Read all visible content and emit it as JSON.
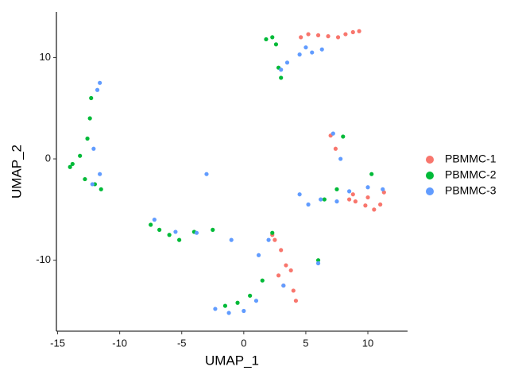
{
  "chart_data": {
    "type": "scatter",
    "x_label": "UMAP_1",
    "y_label": "UMAP_2",
    "xlim": [
      -15.1,
      13.2
    ],
    "ylim": [
      -17.0,
      14.5
    ],
    "xticks": [
      -15,
      -10,
      -5,
      0,
      5,
      10
    ],
    "yticks": [
      -10,
      0,
      10
    ],
    "grid": false,
    "legend": "right",
    "series": [
      {
        "name": "PBMMC-1",
        "color": "#F8766D",
        "x": [
          8.2,
          8.8,
          9.3,
          7.6,
          6.8,
          6.0,
          5.2,
          4.6,
          9.0,
          9.8,
          10.5,
          11.0,
          10.0,
          8.8,
          7.0,
          7.4,
          2.5,
          3.0,
          3.4,
          2.8,
          3.2,
          4.0,
          4.2,
          2.3,
          3.8,
          8.5,
          11.3
        ],
        "y": [
          12.3,
          12.5,
          12.6,
          12.0,
          12.1,
          12.2,
          12.3,
          12.0,
          -4.2,
          -4.6,
          -5.0,
          -4.5,
          -3.8,
          -3.5,
          2.3,
          1.0,
          -8.0,
          -9.0,
          -10.5,
          -11.5,
          -12.5,
          -13.0,
          -14.0,
          -7.5,
          -11.0,
          -4.0,
          -3.3
        ]
      },
      {
        "name": "PBMMC-2",
        "color": "#00BA38",
        "x": [
          1.8,
          2.3,
          2.6,
          2.8,
          3.0,
          -12.3,
          -12.4,
          -12.6,
          -13.2,
          -13.8,
          -14.0,
          -12.8,
          -12.0,
          -11.5,
          -7.5,
          -6.8,
          -6.0,
          -5.2,
          -4.0,
          -2.5,
          1.5,
          0.5,
          -0.5,
          -1.5,
          6.0,
          8.0,
          10.3,
          6.5,
          7.5,
          2.3
        ],
        "y": [
          11.8,
          12.0,
          11.3,
          9.0,
          8.0,
          6.0,
          4.0,
          2.0,
          0.3,
          -0.5,
          -0.8,
          -2.0,
          -2.5,
          -3.0,
          -6.5,
          -7.0,
          -7.5,
          -8.0,
          -7.2,
          -7.0,
          -12.0,
          -13.5,
          -14.2,
          -14.5,
          -10.0,
          2.2,
          -1.5,
          -4.0,
          -3.0,
          -7.3
        ]
      },
      {
        "name": "PBMMC-3",
        "color": "#619CFF",
        "x": [
          5.5,
          4.5,
          6.3,
          3.5,
          3.0,
          5.0,
          -11.6,
          -11.8,
          -12.1,
          -11.6,
          -12.2,
          -3.0,
          -7.2,
          -5.5,
          -3.8,
          -1.0,
          0.0,
          -1.2,
          -2.3,
          1.0,
          2.0,
          1.2,
          3.2,
          6.0,
          7.2,
          7.8,
          8.5,
          11.2,
          10.0,
          5.2,
          6.2,
          7.5,
          4.5
        ],
        "y": [
          10.5,
          10.3,
          10.8,
          9.5,
          8.8,
          11.0,
          7.5,
          6.8,
          1.0,
          -1.5,
          -2.5,
          -1.5,
          -6.0,
          -7.2,
          -7.3,
          -8.0,
          -15.0,
          -15.2,
          -14.8,
          -14.0,
          -8.0,
          -9.5,
          -12.5,
          -10.3,
          2.5,
          0.0,
          -3.2,
          -3.0,
          -2.8,
          -4.5,
          -4.0,
          -4.2,
          -3.5
        ]
      }
    ]
  }
}
